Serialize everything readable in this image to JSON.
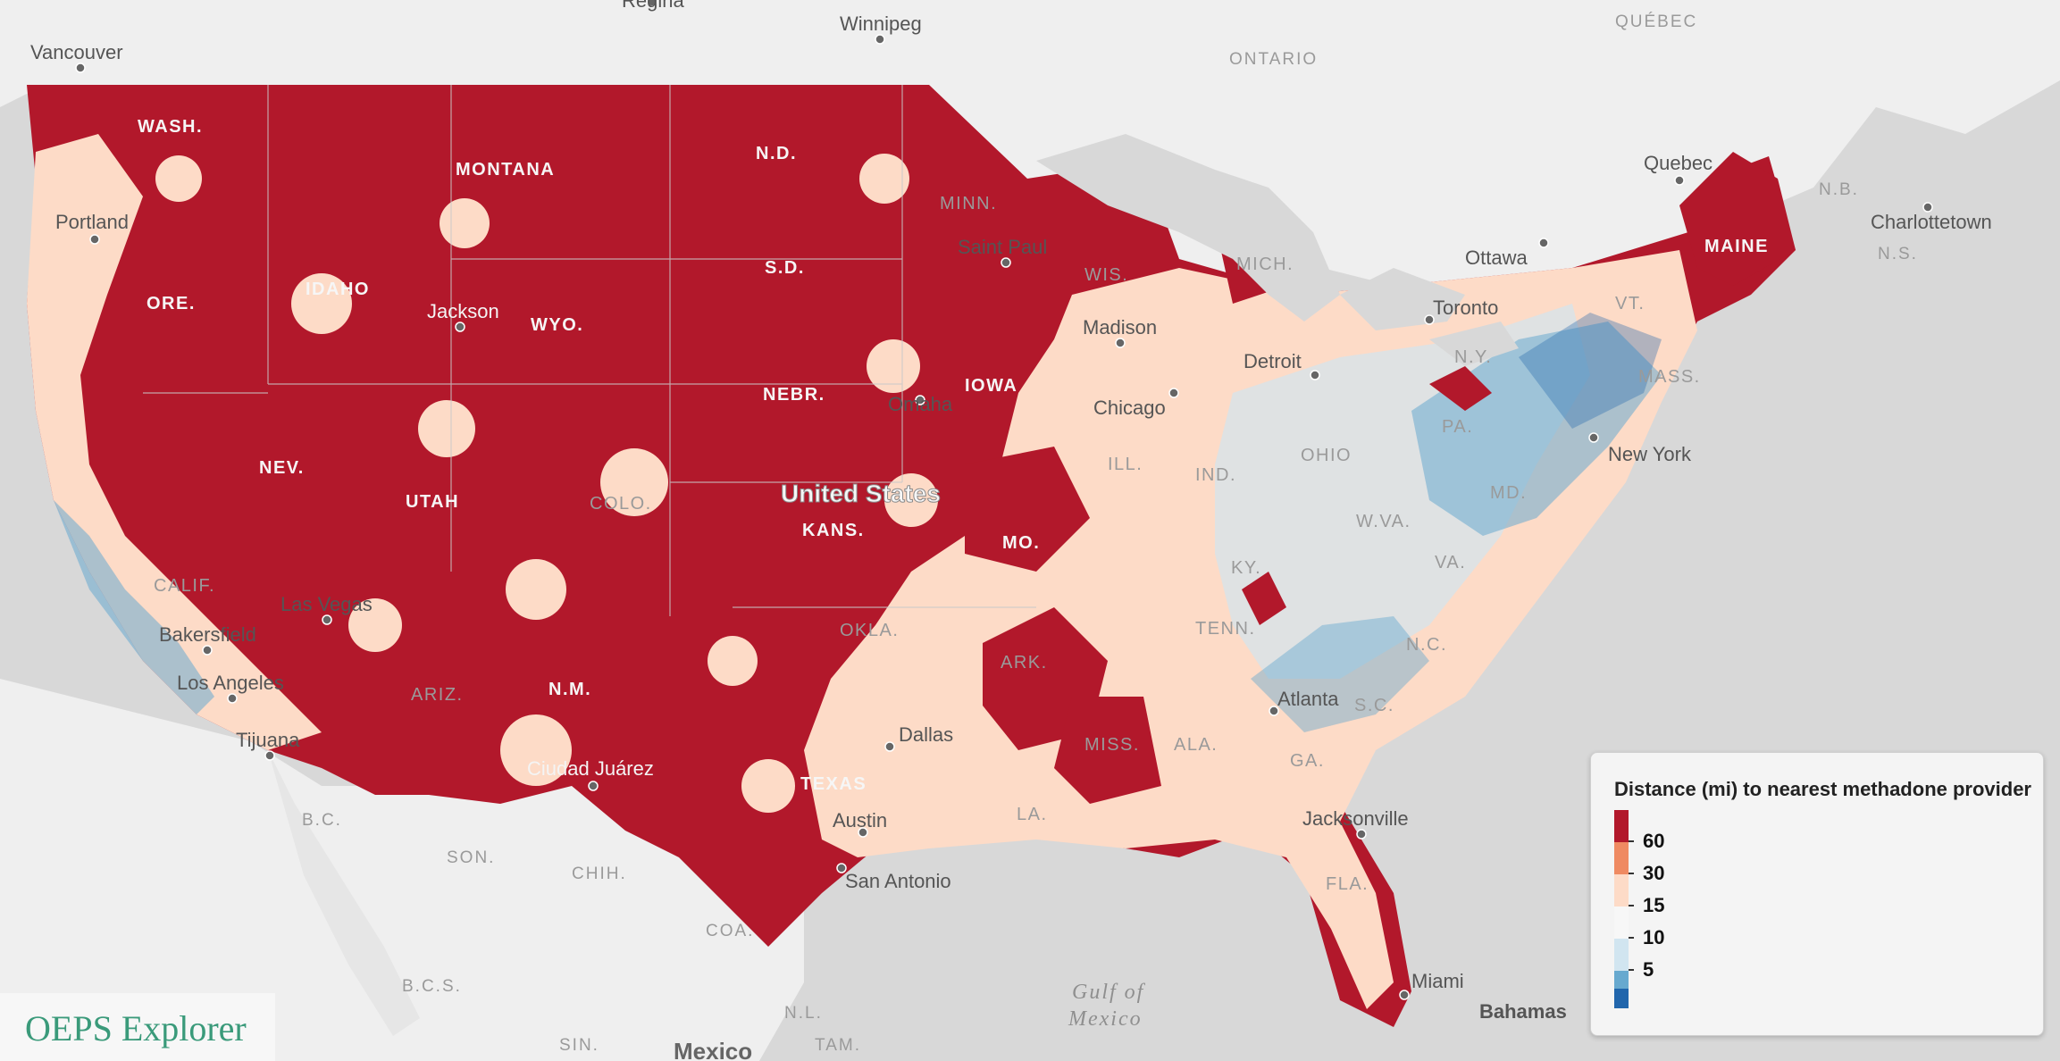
{
  "app_name": "OEPS Explorer",
  "legend": {
    "title": "Distance (mi) to nearest methadone provider",
    "items": [
      {
        "label": "",
        "color": "#b2182b"
      },
      {
        "label": "60",
        "color": "#ef8a62"
      },
      {
        "label": "30",
        "color": "#fddbc7"
      },
      {
        "label": "15",
        "color": "#f7f7f7"
      },
      {
        "label": "10",
        "color": "#d1e5f0"
      },
      {
        "label": "5",
        "color": "#67a9cf"
      },
      {
        "label": "",
        "color": "#2166ac"
      }
    ]
  },
  "map": {
    "country_label": "United States",
    "neighbor_country_label": "Mexico",
    "water_labels": [
      "Gulf of",
      "Mexico"
    ],
    "cities": {
      "vancouver": "Vancouver",
      "regina": "Regina",
      "winnipeg": "Winnipeg",
      "portland": "Portland",
      "jackson": "Jackson",
      "saint_paul": "Saint Paul",
      "madison": "Madison",
      "detroit": "Detroit",
      "toronto": "Toronto",
      "ottawa": "Ottawa",
      "quebec": "Quebec",
      "charlottetown": "Charlottetown",
      "omaha": "Omaha",
      "chicago": "Chicago",
      "new_york": "New York",
      "las_vegas": "Las Vegas",
      "bakersfield": "Bakersfield",
      "los_angeles": "Los Angeles",
      "tijuana": "Tijuana",
      "ciudad_juarez": "Ciudad Juárez",
      "dallas": "Dallas",
      "atlanta": "Atlanta",
      "austin": "Austin",
      "san_antonio": "San Antonio",
      "jacksonville": "Jacksonville",
      "miami": "Miami",
      "bahamas": "Bahamas"
    },
    "states": {
      "wash": "WASH.",
      "montana": "MONTANA",
      "nd": "N.D.",
      "minn": "MINN.",
      "ore": "ORE.",
      "idaho": "IDAHO",
      "wyo": "WYO.",
      "sd": "S.D.",
      "wis": "WIS.",
      "mich": "MICH.",
      "maine": "MAINE",
      "vt": "VT.",
      "ny": "N.Y.",
      "mass": "MASS.",
      "nebr": "NEBR.",
      "iowa": "IOWA",
      "pa": "PA.",
      "ohio": "OHIO",
      "ind": "IND.",
      "ill": "ILL.",
      "nev": "NEV.",
      "utah": "UTAH",
      "colo": "COLO.",
      "kans": "KANS.",
      "mo": "MO.",
      "md": "MD.",
      "wva": "W.VA.",
      "va": "VA.",
      "ky": "KY.",
      "calif": "CALIF.",
      "tenn": "TENN.",
      "nc": "N.C.",
      "ariz": "ARIZ.",
      "nm": "N.M.",
      "okla": "OKLA.",
      "ark": "ARK.",
      "sc": "S.C.",
      "miss": "MISS.",
      "ala": "ALA.",
      "ga": "GA.",
      "texas": "TEXAS",
      "la": "LA.",
      "fla": "FLA."
    },
    "regions": {
      "ontario": "ONTARIO",
      "quebec": "QUÉBEC",
      "nb": "N.B.",
      "ns": "N.S.",
      "bc_mx": "B.C.",
      "son": "SON.",
      "chih": "CHIH.",
      "coa": "COA.",
      "bcs": "B.C.S.",
      "nl": "N.L.",
      "sin": "SIN.",
      "tam": "TAM."
    }
  }
}
